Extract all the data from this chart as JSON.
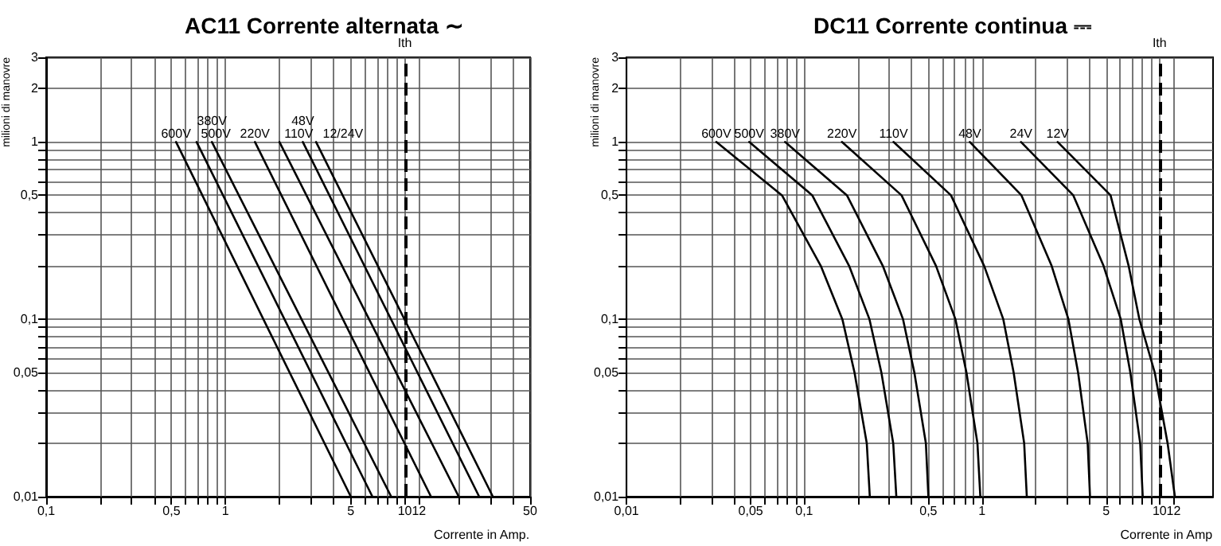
{
  "chart_data": [
    {
      "type": "line",
      "title": "AC11 Corrente alternata ∼",
      "xlabel": "Corrente in Amp.",
      "ylabel": "milioni di manovre",
      "log": "xy",
      "grid": true,
      "legend": false,
      "marker": "none",
      "line_style": "solid",
      "xlim": [
        0.1,
        50
      ],
      "ylim": [
        0.01,
        3
      ],
      "xticks": [
        {
          "value": 0.1,
          "label": "0,1"
        },
        {
          "value": 0.2,
          "label": null
        },
        {
          "value": 0.3,
          "label": null
        },
        {
          "value": 0.4,
          "label": null
        },
        {
          "value": 0.5,
          "label": "0,5"
        },
        {
          "value": 0.6,
          "label": null
        },
        {
          "value": 0.7,
          "label": null
        },
        {
          "value": 0.8,
          "label": null
        },
        {
          "value": 0.9,
          "label": null
        },
        1,
        {
          "value": 2,
          "label": null
        },
        {
          "value": 3,
          "label": null
        },
        {
          "value": 4,
          "label": null
        },
        5,
        {
          "value": 6,
          "label": null
        },
        {
          "value": 7,
          "label": null
        },
        {
          "value": 8,
          "label": null
        },
        {
          "value": 9,
          "label": null
        },
        10,
        12,
        {
          "value": 20,
          "label": null
        },
        {
          "value": 30,
          "label": null
        },
        {
          "value": 40,
          "label": null
        },
        50
      ],
      "yticks": [
        {
          "value": 0.01,
          "label": "0,01"
        },
        {
          "value": 0.02,
          "label": null
        },
        {
          "value": 0.03,
          "label": null
        },
        {
          "value": 0.04,
          "label": null
        },
        {
          "value": 0.05,
          "label": "0,05"
        },
        {
          "value": 0.06,
          "label": null
        },
        {
          "value": 0.07,
          "label": null
        },
        {
          "value": 0.08,
          "label": null
        },
        {
          "value": 0.09,
          "label": null
        },
        {
          "value": 0.1,
          "label": "0,1"
        },
        {
          "value": 0.2,
          "label": null
        },
        {
          "value": 0.3,
          "label": null
        },
        {
          "value": 0.4,
          "label": null
        },
        {
          "value": 0.5,
          "label": "0,5"
        },
        {
          "value": 0.6,
          "label": null
        },
        {
          "value": 0.7,
          "label": null
        },
        {
          "value": 0.8,
          "label": null
        },
        {
          "value": 0.9,
          "label": null
        },
        1,
        2,
        3
      ],
      "ref_lines": [
        {
          "axis": "x",
          "value": 10,
          "label": "Ith",
          "line_style": "dashed",
          "color": "#000000"
        }
      ],
      "series": [
        {
          "name": "600V",
          "color": "#000000",
          "x": [
            0.53,
            5.0
          ],
          "values": [
            1,
            0.01
          ]
        },
        {
          "name": "500V",
          "color": "#000000",
          "x": [
            0.69,
            6.6
          ],
          "values": [
            1,
            0.01
          ]
        },
        {
          "name": "380V",
          "color": "#000000",
          "x": [
            0.84,
            8.4
          ],
          "values": [
            1,
            0.01
          ]
        },
        {
          "name": "220V",
          "color": "#000000",
          "x": [
            1.46,
            14
          ],
          "values": [
            1,
            0.01
          ]
        },
        {
          "name": "110V",
          "color": "#000000",
          "x": [
            2.0,
            20
          ],
          "values": [
            1,
            0.01
          ]
        },
        {
          "name": "48V",
          "color": "#000000",
          "x": [
            2.7,
            26
          ],
          "values": [
            1,
            0.01
          ]
        },
        {
          "name": "12/24V",
          "color": "#000000",
          "x": [
            3.2,
            31
          ],
          "values": [
            1,
            0.01
          ]
        }
      ]
    },
    {
      "type": "line",
      "title": "DC11 Corrente continua ⎓",
      "xlabel": "Corrente in Amp",
      "ylabel": "milioni di manovre",
      "log": "xy",
      "grid": true,
      "legend": false,
      "marker": "none",
      "line_style": "solid",
      "xlim": [
        0.01,
        20
      ],
      "ylim": [
        0.01,
        3
      ],
      "xticks": [
        {
          "value": 0.01,
          "label": "0,01"
        },
        {
          "value": 0.02,
          "label": null
        },
        {
          "value": 0.03,
          "label": null
        },
        {
          "value": 0.04,
          "label": null
        },
        {
          "value": 0.05,
          "label": "0,05"
        },
        {
          "value": 0.06,
          "label": null
        },
        {
          "value": 0.07,
          "label": null
        },
        {
          "value": 0.08,
          "label": null
        },
        {
          "value": 0.09,
          "label": null
        },
        {
          "value": 0.1,
          "label": "0,1"
        },
        {
          "value": 0.2,
          "label": null
        },
        {
          "value": 0.3,
          "label": null
        },
        {
          "value": 0.4,
          "label": null
        },
        {
          "value": 0.5,
          "label": "0,5"
        },
        {
          "value": 0.6,
          "label": null
        },
        {
          "value": 0.7,
          "label": null
        },
        {
          "value": 0.8,
          "label": null
        },
        {
          "value": 0.9,
          "label": null
        },
        1,
        {
          "value": 2,
          "label": null
        },
        {
          "value": 3,
          "label": null
        },
        {
          "value": 4,
          "label": null
        },
        5,
        {
          "value": 6,
          "label": null
        },
        {
          "value": 7,
          "label": null
        },
        {
          "value": 8,
          "label": null
        },
        {
          "value": 9,
          "label": null
        },
        10,
        12
      ],
      "yticks": [
        {
          "value": 0.01,
          "label": "0,01"
        },
        {
          "value": 0.02,
          "label": null
        },
        {
          "value": 0.03,
          "label": null
        },
        {
          "value": 0.04,
          "label": null
        },
        {
          "value": 0.05,
          "label": "0,05"
        },
        {
          "value": 0.06,
          "label": null
        },
        {
          "value": 0.07,
          "label": null
        },
        {
          "value": 0.08,
          "label": null
        },
        {
          "value": 0.09,
          "label": null
        },
        {
          "value": 0.1,
          "label": "0,1"
        },
        {
          "value": 0.2,
          "label": null
        },
        {
          "value": 0.3,
          "label": null
        },
        {
          "value": 0.4,
          "label": null
        },
        {
          "value": 0.5,
          "label": "0,5"
        },
        {
          "value": 0.6,
          "label": null
        },
        {
          "value": 0.7,
          "label": null
        },
        {
          "value": 0.8,
          "label": null
        },
        {
          "value": 0.9,
          "label": null
        },
        1,
        2,
        3
      ],
      "ref_lines": [
        {
          "axis": "x",
          "value": 10,
          "label": "Ith",
          "line_style": "dashed",
          "color": "#000000"
        }
      ],
      "series": [
        {
          "name": "600V",
          "color": "#000000",
          "x": [
            0.032,
            0.075,
            0.124,
            0.164,
            0.192,
            0.225,
            0.234
          ],
          "values": [
            1,
            0.5,
            0.2,
            0.1,
            0.05,
            0.02,
            0.01
          ]
        },
        {
          "name": "500V",
          "color": "#000000",
          "x": [
            0.049,
            0.111,
            0.179,
            0.233,
            0.272,
            0.317,
            0.33
          ],
          "values": [
            1,
            0.5,
            0.2,
            0.1,
            0.05,
            0.02,
            0.01
          ]
        },
        {
          "name": "380V",
          "color": "#000000",
          "x": [
            0.078,
            0.174,
            0.277,
            0.36,
            0.417,
            0.484,
            0.5
          ],
          "values": [
            1,
            0.5,
            0.2,
            0.1,
            0.05,
            0.02,
            0.01
          ]
        },
        {
          "name": "220V",
          "color": "#000000",
          "x": [
            0.163,
            0.353,
            0.552,
            0.71,
            0.819,
            0.944,
            0.98
          ],
          "values": [
            1,
            0.5,
            0.2,
            0.1,
            0.05,
            0.02,
            0.01
          ]
        },
        {
          "name": "110V",
          "color": "#000000",
          "x": [
            0.318,
            0.67,
            1.03,
            1.32,
            1.51,
            1.73,
            1.79
          ],
          "values": [
            1,
            0.5,
            0.2,
            0.1,
            0.05,
            0.02,
            0.01
          ]
        },
        {
          "name": "48V",
          "color": "#000000",
          "x": [
            0.855,
            1.67,
            2.47,
            3.07,
            3.48,
            3.94,
            4.06
          ],
          "values": [
            1,
            0.5,
            0.2,
            0.1,
            0.05,
            0.02,
            0.01
          ]
        },
        {
          "name": "24V",
          "color": "#000000",
          "x": [
            1.66,
            3.27,
            4.84,
            6.05,
            6.85,
            7.78,
            8.04
          ],
          "values": [
            1,
            0.5,
            0.2,
            0.1,
            0.05,
            0.02,
            0.01
          ]
        },
        {
          "name": "12V",
          "color": "#000000",
          "x": [
            2.67,
            5.3,
            6.7,
            7.7,
            9.4,
            11.1,
            12.2
          ],
          "values": [
            1,
            0.5,
            0.2,
            0.1,
            0.05,
            0.02,
            0.01
          ]
        }
      ]
    }
  ]
}
